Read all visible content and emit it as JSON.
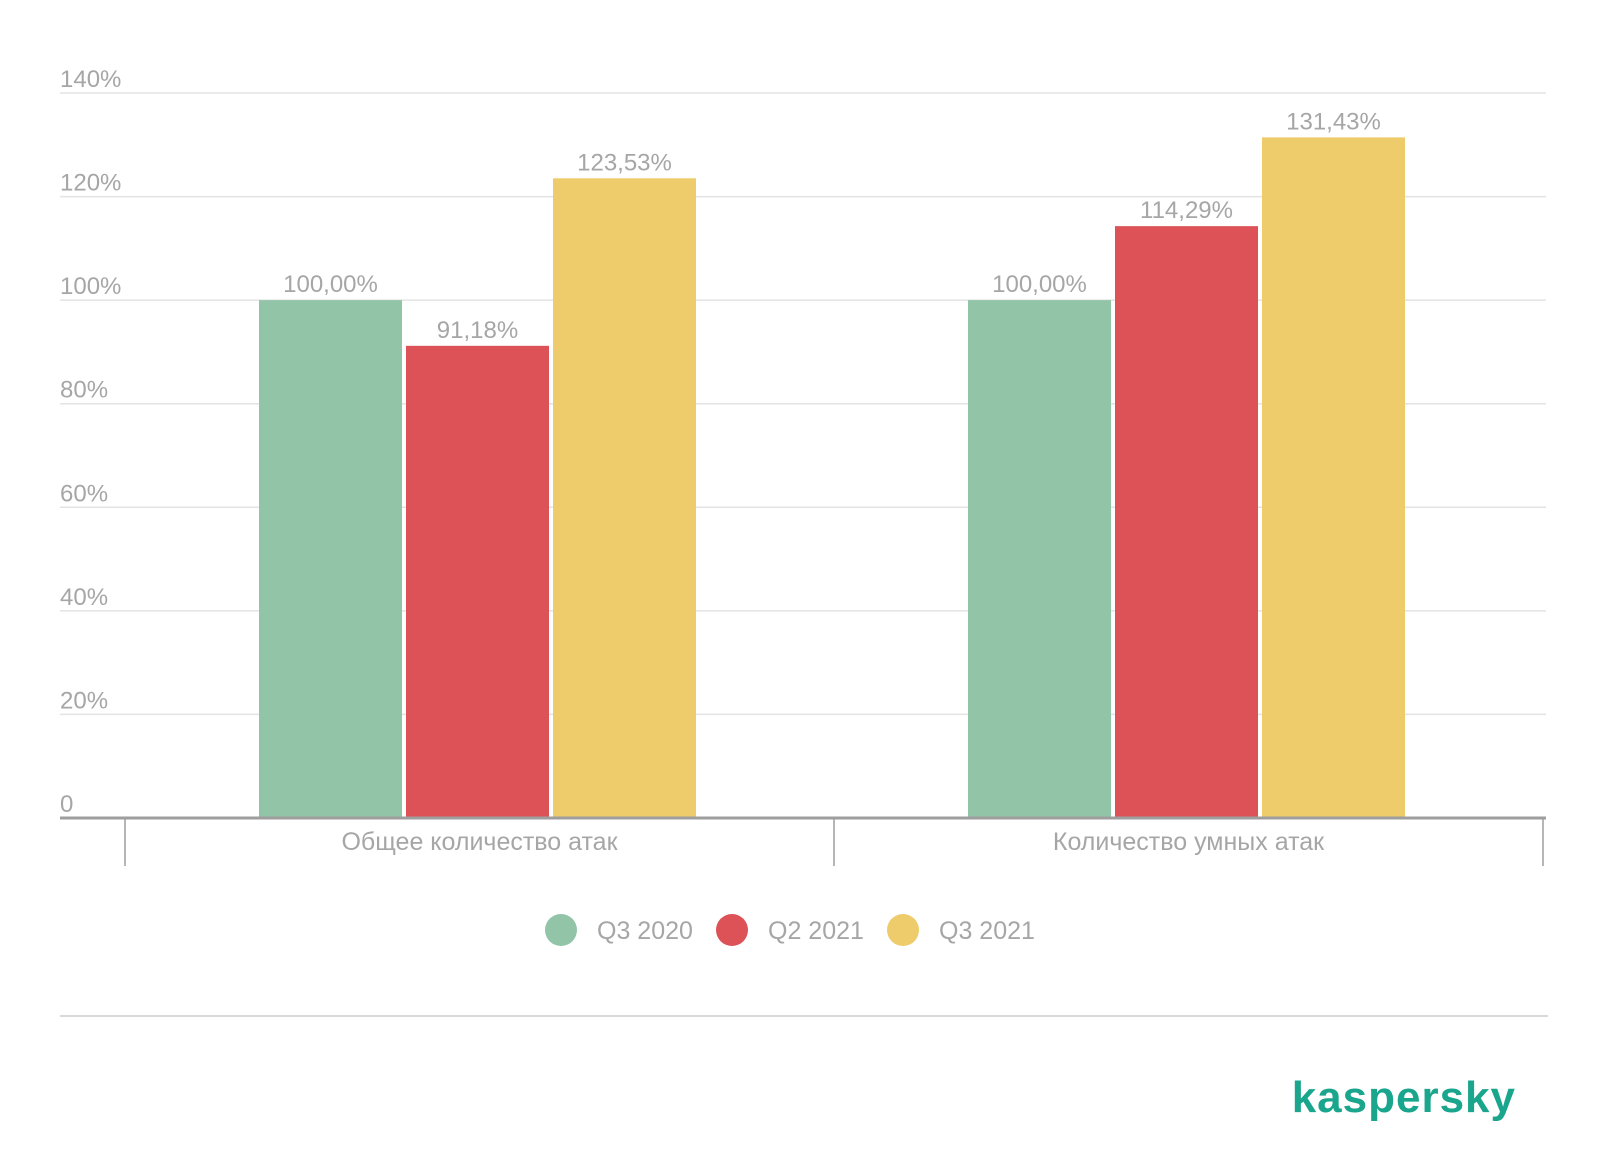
{
  "chart_data": {
    "type": "bar",
    "categories": [
      "Общее количество атак",
      "Количество умных атак"
    ],
    "series": [
      {
        "name": "Q3 2020",
        "color": "#92c4a8",
        "values": [
          100.0,
          100.0
        ],
        "labels": [
          "100,00%",
          "100,00%"
        ]
      },
      {
        "name": "Q2 2021",
        "color": "#dc5257",
        "values": [
          91.18,
          114.29
        ],
        "labels": [
          "91,18%",
          "114,29%"
        ]
      },
      {
        "name": "Q3 2021",
        "color": "#eecb6b",
        "values": [
          123.53,
          131.43
        ],
        "labels": [
          "123,53%",
          "131,43%"
        ]
      }
    ],
    "ylim": [
      0,
      140
    ],
    "yticks": [
      {
        "value": 0,
        "label": "0"
      },
      {
        "value": 20,
        "label": "20%"
      },
      {
        "value": 40,
        "label": "40%"
      },
      {
        "value": 60,
        "label": "60%"
      },
      {
        "value": 80,
        "label": "80%"
      },
      {
        "value": 100,
        "label": "100%"
      },
      {
        "value": 120,
        "label": "120%"
      },
      {
        "value": 140,
        "label": "140%"
      }
    ],
    "grid": true,
    "legend_position": "bottom-center",
    "title": "",
    "xlabel": "",
    "ylabel": ""
  },
  "brand": {
    "logo_text": "kaspersky",
    "color": "#1aa58d"
  }
}
